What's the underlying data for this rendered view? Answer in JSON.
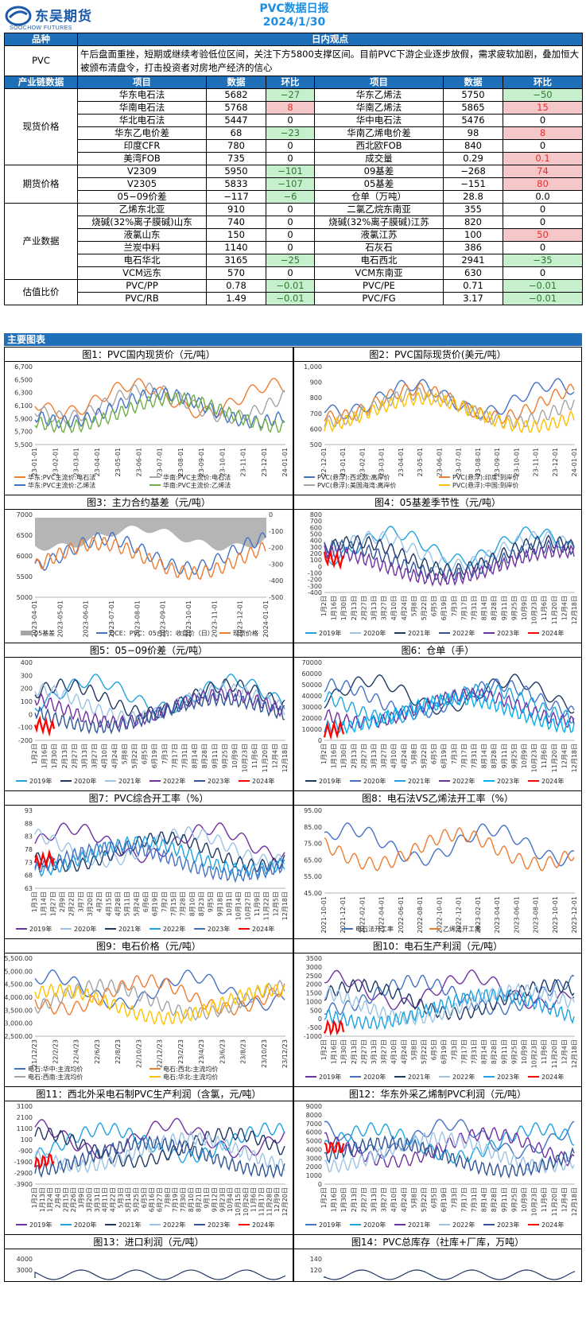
{
  "header": {
    "logo_cn": "东吴期货",
    "logo_en": "SOOCHOW FUTURES",
    "title": "PVC数据日报",
    "date": "2024/1/30"
  },
  "table_head": {
    "col1": "品种",
    "col2": "日内观点"
  },
  "view": {
    "label": "PVC",
    "text": "午后盘面重挫，短期或继续考验低位区间，关注下方5800支撑区间。目前PVC下游企业逐步放假，需求疲软加剧，叠加恒大被颁布清盘令，打击投资者对房地产经济的信心"
  },
  "data_head": {
    "c0": "产业链数据",
    "c1": "项目",
    "c2": "数据",
    "c3": "环比",
    "c4": "项目",
    "c5": "数据",
    "c6": "环比"
  },
  "groups": [
    {
      "name": "现货价格",
      "rows": [
        [
          "华东电石法",
          "5682",
          "−27",
          "neg",
          "华东乙烯法",
          "5750",
          "−50",
          "neg"
        ],
        [
          "华南电石法",
          "5768",
          "8",
          "pos",
          "华南乙烯法",
          "5865",
          "15",
          "pos"
        ],
        [
          "华北电石法",
          "5447",
          "0",
          "",
          "华中电石法",
          "5476",
          "0",
          ""
        ],
        [
          "华东乙电价差",
          "68",
          "−23",
          "neg",
          "华南乙烯电价差",
          "98",
          "8",
          "pos"
        ],
        [
          "印度CFR",
          "780",
          "0",
          "",
          "西北欧FOB",
          "840",
          "0",
          ""
        ],
        [
          "美湾FOB",
          "735",
          "0",
          "",
          "成交量",
          "0.29",
          "0.1",
          "pos"
        ]
      ]
    },
    {
      "name": "期货价格",
      "rows": [
        [
          "V2309",
          "5950",
          "−101",
          "neg",
          "09基差",
          "−268",
          "74",
          "pos"
        ],
        [
          "V2305",
          "5833",
          "−107",
          "neg",
          "05基差",
          "−151",
          "80",
          "pos"
        ],
        [
          "05−09价差",
          "−117",
          "−6",
          "neg",
          "仓单（万吨）",
          "28.8",
          "0.0",
          ""
        ]
      ]
    },
    {
      "name": "产业数据",
      "rows": [
        [
          "乙烯东北亚",
          "910",
          "0",
          "",
          "二氯乙烷东南亚",
          "355",
          "0",
          ""
        ],
        [
          "烧碱(32%离子膜碱)山东",
          "740",
          "0",
          "",
          "烧碱(32%离子膜碱)江苏",
          "820",
          "0",
          ""
        ],
        [
          "液氯山东",
          "150",
          "0",
          "",
          "液氯江苏",
          "100",
          "50",
          "pos"
        ],
        [
          "兰炭中料",
          "1140",
          "0",
          "",
          "石灰石",
          "386",
          "0",
          ""
        ],
        [
          "电石华北",
          "3165",
          "−25",
          "neg",
          "电石西北",
          "2941",
          "−35",
          "neg"
        ],
        [
          "VCM远东",
          "570",
          "0",
          "",
          "VCM东南亚",
          "630",
          "0",
          ""
        ]
      ]
    },
    {
      "name": "估值比价",
      "rows": [
        [
          "PVC/PP",
          "0.78",
          "−0.01",
          "neg",
          "PVC/PE",
          "0.71",
          "−0.01",
          "neg"
        ],
        [
          "PVC/RB",
          "1.49",
          "−0.01",
          "neg",
          "PVC/FG",
          "3.17",
          "−0.01",
          "neg"
        ]
      ]
    }
  ],
  "section_title": "主要图表",
  "charts": [
    {
      "title": "图1：PVC国内现货价（元/吨）",
      "yticks": [
        "6,700",
        "6,500",
        "6,300",
        "6,100",
        "5,900",
        "5,700",
        "5,500"
      ],
      "xticks": [
        "23-01-01",
        "23-02-01",
        "23-03-01",
        "23-04-01",
        "23-05-01",
        "23-06-01",
        "23-07-01",
        "23-08-01",
        "23-09-01",
        "23-10-01",
        "23-11-01",
        "23-12-01",
        "24-01-01"
      ],
      "legend": [
        "华东:PVC主流价:电石法",
        "华南:PVC主流价:电石法",
        "华东:PVC主流价:乙烯法",
        "华南:PVC主流价:乙烯法"
      ],
      "colors": [
        "#ed7d31",
        "#a5a5a5",
        "#4472c4",
        "#70ad47"
      ]
    },
    {
      "title": "图2：PVC国际现货价(美元/吨）",
      "yticks": [
        "1,000",
        "900",
        "800",
        "700",
        "600",
        "500"
      ],
      "xticks": [
        "22-12-01",
        "23-01-01",
        "23-02-01",
        "23-03-01",
        "23-04-01",
        "23-05-01",
        "23-06-01",
        "23-07-01",
        "23-08-01",
        "23-09-01",
        "23-10-01",
        "23-11-01",
        "23-12-01",
        "24-01-01"
      ],
      "legend": [
        "PVC(悬浮):西北欧:离岸价",
        "PVC(悬浮):印度:到岸价",
        "PVC(悬浮):美国海湾:离岸价",
        "PVC(悬浮):中国:到岸价"
      ],
      "colors": [
        "#4472c4",
        "#ed7d31",
        "#a5a5a5",
        "#ffc000"
      ]
    },
    {
      "title": "图3：主力合约基差（元/吨）",
      "yticks": [
        "7000",
        "6500",
        "6000",
        "5500",
        "5000"
      ],
      "y2ticks": [
        "0",
        "-100",
        "-200",
        "-300",
        "-400",
        "-500"
      ],
      "xticks": [
        "2023-04-01",
        "2023-05-01",
        "2023-06-01",
        "2023-07-01",
        "2023-08-01",
        "2023-09-01",
        "2023-10-01",
        "2023-11-01",
        "2023-12-01",
        "2024-01-01"
      ],
      "legend": [
        "05基差",
        "DCE：PVC：05合约：收盘价（日）",
        "现货价格"
      ],
      "colors": [
        "#a5a5a5",
        "#4472c4",
        "#ed7d31"
      ]
    },
    {
      "title": "图4：05基差季节性（元/吨）",
      "yticks": [
        "800",
        "700",
        "600",
        "500",
        "400",
        "300",
        "200",
        "100",
        "0",
        "-100",
        "-200",
        "-300",
        "-400"
      ],
      "xticks": [
        "1月2日",
        "1月16日",
        "1月30日",
        "2月13日",
        "2月27日",
        "3月13日",
        "3月27日",
        "4月10日",
        "4月24日",
        "5月8日",
        "5月22日",
        "6月5日",
        "6月19日",
        "7月3日",
        "7月17日",
        "7月31日",
        "8月14日",
        "8月28日",
        "9月11日",
        "9月25日",
        "10月9日",
        "10月23日",
        "11月6日",
        "11月20日",
        "12月4日",
        "12月18日"
      ],
      "legend": [
        "2019年",
        "2020年",
        "2021年",
        "2022年",
        "2023年",
        "2024年"
      ],
      "colors": [
        "#1fa3e0",
        "#9dc3e6",
        "#203864",
        "#2f5597",
        "#7030a0",
        "#ff0000"
      ]
    },
    {
      "title": "图5：05−09价差（元/吨）",
      "yticks": [
        "400",
        "300",
        "200",
        "100",
        "0",
        "-100",
        "-200"
      ],
      "xticks": [
        "1月2日",
        "1月16日",
        "1月30日",
        "2月13日",
        "2月27日",
        "3月13日",
        "3月27日",
        "4月10日",
        "4月24日",
        "5月8日",
        "5月22日",
        "6月5日",
        "6月19日",
        "7月3日",
        "7月17日",
        "7月31日",
        "8月14日",
        "8月28日",
        "9月11日",
        "9月25日",
        "10月9日",
        "10月23日",
        "11月6日",
        "11月20日",
        "12月4日",
        "12月18日"
      ],
      "legend": [
        "2019年",
        "2020年",
        "2021年",
        "2022年",
        "2023年",
        "2024年"
      ],
      "colors": [
        "#1fa3e0",
        "#203864",
        "#9dc3e6",
        "#7030a0",
        "#2f5597",
        "#ff0000"
      ]
    },
    {
      "title": "图6：仓单（手）",
      "yticks": [
        "70000",
        "60000",
        "50000",
        "40000",
        "30000",
        "20000",
        "10000",
        "0"
      ],
      "xticks": [
        "1月2日",
        "1月16日",
        "1月30日",
        "2月13日",
        "2月27日",
        "3月13日",
        "3月27日",
        "4月10日",
        "4月24日",
        "5月8日",
        "5月22日",
        "6月5日",
        "6月19日",
        "7月3日",
        "7月17日",
        "7月31日",
        "8月14日",
        "8月28日",
        "9月11日",
        "9月25日",
        "10月9日",
        "10月23日",
        "11月6日",
        "11月20日",
        "12月4日",
        "12月18日"
      ],
      "legend": [
        "2019年",
        "2020年",
        "2021年",
        "2022年",
        "2023年",
        "2024年"
      ],
      "colors": [
        "#203864",
        "#4472c4",
        "#1fa3e0",
        "#7030a0",
        "#00b0f0",
        "#ff0000"
      ]
    },
    {
      "title": "图7：PVC综合开工率（%）",
      "yticks": [
        "93",
        "88",
        "83",
        "78",
        "73",
        "68",
        "63"
      ],
      "xticks": [
        "1月3日",
        "1月14日",
        "1月27日",
        "2月9日",
        "2月22日",
        "3月7日",
        "3月20日",
        "4月2日",
        "4月15日",
        "4月28日",
        "5月11日",
        "5月24日",
        "6月6日",
        "6月19日",
        "7月2日",
        "7月15日",
        "7月28日",
        "8月10日",
        "8月23日",
        "9月5日",
        "9月18日",
        "10月1日",
        "10月14日",
        "10月27日",
        "11月9日",
        "11月22日",
        "12月5日",
        "12月18日"
      ],
      "legend": [
        "2019年",
        "2020年",
        "2021年",
        "2022年",
        "2023年",
        "2024年"
      ],
      "colors": [
        "#7030a0",
        "#9dc3e6",
        "#203864",
        "#1fa3e0",
        "#4472c4",
        "#ff0000"
      ]
    },
    {
      "title": "图8：电石法VS乙烯法开工率（%）",
      "yticks": [
        "95.00",
        "85.00",
        "75.00",
        "65.00",
        "55.00",
        "45.00"
      ],
      "xticks": [
        "2021-10-01",
        "2021-12-01",
        "2022-02-01",
        "2022-04-01",
        "2022-06-01",
        "2022-08-01",
        "2022-10-01",
        "2022-12-01",
        "2023-02-01",
        "2023-04-01",
        "2023-06-01",
        "2023-08-01",
        "2023-10-01",
        "2023-12-01"
      ],
      "legend": [
        "电石法开工率",
        "乙烯法开工率"
      ],
      "colors": [
        "#4472c4",
        "#ed7d31"
      ]
    },
    {
      "title": "图9：电石价格（元/吨）",
      "yticks": [
        "5,500.00",
        "5,000.00",
        "4,500.00",
        "4,000.00",
        "3,500.00",
        "3,000.00",
        "2,500.00"
      ],
      "xticks": [
        "21/12/23",
        "22/2/23",
        "22/4/23",
        "22/6/23",
        "22/8/23",
        "22/10/23",
        "22/12/23",
        "23/2/23",
        "23/4/23",
        "23/6/23",
        "23/8/23",
        "23/10/23",
        "23/12/23"
      ],
      "legend": [
        "电石:华中:主流均价",
        "电石:西北:主流均价",
        "电石:西南:主流均价",
        "电石:华北:主流均价"
      ],
      "colors": [
        "#4472c4",
        "#ed7d31",
        "#a5a5a5",
        "#ffc000"
      ]
    },
    {
      "title": "图10：电石生产利润（元/吨）",
      "yticks": [
        "3500",
        "3000",
        "2500",
        "2000",
        "1500",
        "1000",
        "500",
        "0",
        "-500",
        "-1000"
      ],
      "xticks": [
        "1月2日",
        "1月16日",
        "1月30日",
        "2月13日",
        "2月27日",
        "3月13日",
        "3月27日",
        "4月10日",
        "4月24日",
        "5月8日",
        "5月22日",
        "6月5日",
        "6月19日",
        "7月3日",
        "7月17日",
        "7月31日",
        "8月14日",
        "8月28日",
        "9月11日",
        "9月25日",
        "10月9日",
        "10月23日",
        "11月6日",
        "11月20日",
        "12月4日",
        "12月18日"
      ],
      "legend": [
        "2019年",
        "2020年",
        "2021年",
        "2022年",
        "2023年",
        "2024年"
      ],
      "colors": [
        "#7030a0",
        "#4472c4",
        "#203864",
        "#9dc3e6",
        "#1fa3e0",
        "#ff0000"
      ]
    },
    {
      "title": "图11：西北外采电石制PVC生产利润（含氯，元/吨）",
      "yticks": [
        "3100",
        "2100",
        "1100",
        "100",
        "-900",
        "-1900",
        "-2900",
        "-3900"
      ],
      "xticks": [
        "1月2日",
        "1月13日",
        "1月24日",
        "2月4日",
        "2月15日",
        "2月26日",
        "3月9日",
        "3月20日",
        "3月31日",
        "4月11日",
        "4月22日",
        "5月3日",
        "5月14日",
        "5月25日",
        "6月5日",
        "6月16日",
        "6月27日",
        "7月8日",
        "7月19日",
        "7月30日",
        "8月10日",
        "8月21日",
        "9月1日",
        "9月12日",
        "9月23日",
        "10月4日",
        "10月15日",
        "10月26日",
        "11月6日",
        "11月17日",
        "11月28日",
        "12月9日",
        "12月20日"
      ],
      "legend": [
        "2019年",
        "2020年",
        "2021年",
        "2022年",
        "2023年",
        "2024年"
      ],
      "colors": [
        "#7030a0",
        "#1fa3e0",
        "#203864",
        "#9dc3e6",
        "#2f5597",
        "#ff0000"
      ]
    },
    {
      "title": "图12：华东外采乙烯制PVC利润（元/吨）",
      "yticks": [
        "9000",
        "8000",
        "7000",
        "6000",
        "5000",
        "4000",
        "3000",
        "2000",
        "1000",
        "0"
      ],
      "xticks": [
        "1月2日",
        "1月16日",
        "1月30日",
        "2月13日",
        "2月27日",
        "3月13日",
        "3月27日",
        "4月10日",
        "4月24日",
        "5月8日",
        "5月22日",
        "6月5日",
        "6月19日",
        "7月3日",
        "7月17日",
        "7月31日",
        "8月14日",
        "8月28日",
        "9月11日",
        "9月25日",
        "10月9日",
        "10月23日",
        "11月6日",
        "11月20日",
        "12月4日",
        "12月18日"
      ],
      "legend": [
        "2019年",
        "2020年",
        "2021年",
        "2022年",
        "2023年",
        "2024年"
      ],
      "colors": [
        "#4472c4",
        "#1fa3e0",
        "#7030a0",
        "#9dc3e6",
        "#2f5597",
        "#ff0000"
      ]
    },
    {
      "title": "图13：进口利润（元/吨）",
      "yticks": [
        "4000",
        "3000"
      ],
      "xticks": [],
      "legend": [],
      "colors": [
        "#203864"
      ]
    },
    {
      "title": "图14：PVC总库存（社库+厂库，万吨）",
      "yticks": [
        "140",
        "120"
      ],
      "xticks": [],
      "legend": [],
      "colors": [
        "#203864"
      ]
    }
  ]
}
